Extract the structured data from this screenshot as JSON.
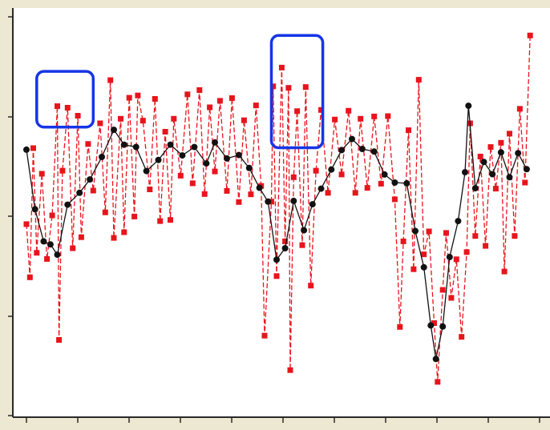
{
  "chart_data": {
    "type": "line",
    "title": "",
    "xlabel": "",
    "ylabel": "",
    "grid": false,
    "legend": "none",
    "xlim": [
      0,
      300
    ],
    "ylim": [
      0,
      100
    ],
    "colors": {
      "series_black": "#111111",
      "series_red": "#e8141c",
      "highlight_box": "#1535e6",
      "plot_background": "#ffffff",
      "frame_background": "#ede8d2",
      "axis": "#2a2a2a"
    },
    "highlight_regions": [
      {
        "x": [
          6,
          39
        ],
        "y": [
          73.0,
          87.6
        ]
      },
      {
        "x": [
          143,
          173
        ],
        "y": [
          67.6,
          97.0
        ]
      }
    ],
    "series": [
      {
        "style": "black-circle-solid",
        "values": [
          {
            "x": 0,
            "y": 67.1
          },
          {
            "x": 5,
            "y": 51.5
          },
          {
            "x": 10,
            "y": 43.1
          },
          {
            "x": 14,
            "y": 42.3
          },
          {
            "x": 18,
            "y": 39.6
          },
          {
            "x": 24,
            "y": 52.7
          },
          {
            "x": 31,
            "y": 55.8
          },
          {
            "x": 37,
            "y": 59.3
          },
          {
            "x": 44,
            "y": 65.2
          },
          {
            "x": 51,
            "y": 72.3
          },
          {
            "x": 57,
            "y": 68.4
          },
          {
            "x": 64,
            "y": 67.8
          },
          {
            "x": 70,
            "y": 61.5
          },
          {
            "x": 77,
            "y": 64.4
          },
          {
            "x": 84,
            "y": 68.4
          },
          {
            "x": 91,
            "y": 65.6
          },
          {
            "x": 98,
            "y": 67.8
          },
          {
            "x": 105,
            "y": 63.5
          },
          {
            "x": 110,
            "y": 69.0
          },
          {
            "x": 117,
            "y": 64.8
          },
          {
            "x": 124,
            "y": 65.7
          },
          {
            "x": 130,
            "y": 62.3
          },
          {
            "x": 136,
            "y": 57.1
          },
          {
            "x": 141,
            "y": 53.5
          },
          {
            "x": 146,
            "y": 38.3
          },
          {
            "x": 151,
            "y": 41.3
          },
          {
            "x": 156,
            "y": 53.7
          },
          {
            "x": 162,
            "y": 46.0
          },
          {
            "x": 167,
            "y": 52.8
          },
          {
            "x": 172,
            "y": 56.9
          },
          {
            "x": 178,
            "y": 61.9
          },
          {
            "x": 184,
            "y": 67.0
          },
          {
            "x": 190,
            "y": 69.9
          },
          {
            "x": 196,
            "y": 67.3
          },
          {
            "x": 203,
            "y": 66.6
          },
          {
            "x": 209,
            "y": 60.6
          },
          {
            "x": 215,
            "y": 58.5
          },
          {
            "x": 222,
            "y": 58.3
          },
          {
            "x": 227,
            "y": 45.8
          },
          {
            "x": 232,
            "y": 36.3
          },
          {
            "x": 236,
            "y": 21.1
          },
          {
            "x": 239,
            "y": 12.3
          },
          {
            "x": 243,
            "y": 20.8
          },
          {
            "x": 247,
            "y": 39.0
          },
          {
            "x": 252,
            "y": 48.4
          },
          {
            "x": 256,
            "y": 61.2
          },
          {
            "x": 258,
            "y": 78.6
          },
          {
            "x": 262,
            "y": 57.0
          },
          {
            "x": 267,
            "y": 63.9
          },
          {
            "x": 272,
            "y": 60.7
          },
          {
            "x": 277,
            "y": 66.4
          },
          {
            "x": 282,
            "y": 59.9
          },
          {
            "x": 287,
            "y": 66.2
          },
          {
            "x": 292,
            "y": 62.0
          }
        ]
      },
      {
        "style": "red-square-dashed",
        "values": [
          {
            "x": 0,
            "y": 47.6
          },
          {
            "x": 2,
            "y": 33.7
          },
          {
            "x": 4,
            "y": 67.5
          },
          {
            "x": 6,
            "y": 40.1
          },
          {
            "x": 9,
            "y": 60.8
          },
          {
            "x": 12,
            "y": 38.5
          },
          {
            "x": 15,
            "y": 49.9
          },
          {
            "x": 18,
            "y": 78.5
          },
          {
            "x": 19,
            "y": 17.3
          },
          {
            "x": 21,
            "y": 61.6
          },
          {
            "x": 24,
            "y": 78.1
          },
          {
            "x": 27,
            "y": 41.3
          },
          {
            "x": 30,
            "y": 76.0
          },
          {
            "x": 32,
            "y": 44.2
          },
          {
            "x": 36,
            "y": 68.6
          },
          {
            "x": 39,
            "y": 56.4
          },
          {
            "x": 43,
            "y": 74.0
          },
          {
            "x": 46,
            "y": 50.7
          },
          {
            "x": 49,
            "y": 85.3
          },
          {
            "x": 51,
            "y": 44.0
          },
          {
            "x": 55,
            "y": 75.2
          },
          {
            "x": 57,
            "y": 45.5
          },
          {
            "x": 60,
            "y": 80.7
          },
          {
            "x": 63,
            "y": 49.6
          },
          {
            "x": 65,
            "y": 81.3
          },
          {
            "x": 68,
            "y": 74.7
          },
          {
            "x": 72,
            "y": 56.7
          },
          {
            "x": 75,
            "y": 80.4
          },
          {
            "x": 78,
            "y": 48.4
          },
          {
            "x": 81,
            "y": 71.8
          },
          {
            "x": 84,
            "y": 48.7
          },
          {
            "x": 86,
            "y": 75.2
          },
          {
            "x": 90,
            "y": 60.3
          },
          {
            "x": 94,
            "y": 81.6
          },
          {
            "x": 97,
            "y": 58.3
          },
          {
            "x": 101,
            "y": 82.7
          },
          {
            "x": 104,
            "y": 55.5
          },
          {
            "x": 107,
            "y": 78.2
          },
          {
            "x": 110,
            "y": 61.4
          },
          {
            "x": 113,
            "y": 79.9
          },
          {
            "x": 117,
            "y": 56.3
          },
          {
            "x": 120,
            "y": 80.6
          },
          {
            "x": 124,
            "y": 53.4
          },
          {
            "x": 127,
            "y": 74.8
          },
          {
            "x": 131,
            "y": 55.4
          },
          {
            "x": 134,
            "y": 78.7
          },
          {
            "x": 137,
            "y": 57.6
          },
          {
            "x": 139,
            "y": 18.4
          },
          {
            "x": 143,
            "y": 53.5
          },
          {
            "x": 144,
            "y": 83.7
          },
          {
            "x": 146,
            "y": 34.0
          },
          {
            "x": 149,
            "y": 88.6
          },
          {
            "x": 151,
            "y": 43.1
          },
          {
            "x": 153,
            "y": 83.3
          },
          {
            "x": 154,
            "y": 9.4
          },
          {
            "x": 156,
            "y": 59.9
          },
          {
            "x": 158,
            "y": 77.2
          },
          {
            "x": 161,
            "y": 42.1
          },
          {
            "x": 163,
            "y": 83.5
          },
          {
            "x": 166,
            "y": 31.5
          },
          {
            "x": 169,
            "y": 61.6
          },
          {
            "x": 172,
            "y": 77.5
          },
          {
            "x": 176,
            "y": 55.8
          },
          {
            "x": 180,
            "y": 75.0
          },
          {
            "x": 184,
            "y": 60.6
          },
          {
            "x": 188,
            "y": 77.3
          },
          {
            "x": 192,
            "y": 55.8
          },
          {
            "x": 195,
            "y": 75.2
          },
          {
            "x": 199,
            "y": 57.1
          },
          {
            "x": 203,
            "y": 75.8
          },
          {
            "x": 207,
            "y": 58.2
          },
          {
            "x": 211,
            "y": 75.9
          },
          {
            "x": 215,
            "y": 54.1
          },
          {
            "x": 218,
            "y": 20.7
          },
          {
            "x": 220,
            "y": 43.1
          },
          {
            "x": 223,
            "y": 72.2
          },
          {
            "x": 226,
            "y": 35.8
          },
          {
            "x": 229,
            "y": 85.4
          },
          {
            "x": 232,
            "y": 39.7
          },
          {
            "x": 235,
            "y": 45.7
          },
          {
            "x": 238,
            "y": 21.7
          },
          {
            "x": 240,
            "y": 6.3
          },
          {
            "x": 243,
            "y": 30.4
          },
          {
            "x": 245,
            "y": 45.3
          },
          {
            "x": 248,
            "y": 28.3
          },
          {
            "x": 251,
            "y": 38.4
          },
          {
            "x": 254,
            "y": 18.1
          },
          {
            "x": 257,
            "y": 40.3
          },
          {
            "x": 259,
            "y": 74.0
          },
          {
            "x": 262,
            "y": 44.5
          },
          {
            "x": 265,
            "y": 65.3
          },
          {
            "x": 268,
            "y": 41.9
          },
          {
            "x": 271,
            "y": 67.8
          },
          {
            "x": 274,
            "y": 56.9
          },
          {
            "x": 277,
            "y": 68.9
          },
          {
            "x": 279,
            "y": 35.2
          },
          {
            "x": 282,
            "y": 71.3
          },
          {
            "x": 285,
            "y": 44.5
          },
          {
            "x": 288,
            "y": 77.8
          },
          {
            "x": 291,
            "y": 58.5
          },
          {
            "x": 294,
            "y": 97.0
          }
        ]
      }
    ]
  }
}
